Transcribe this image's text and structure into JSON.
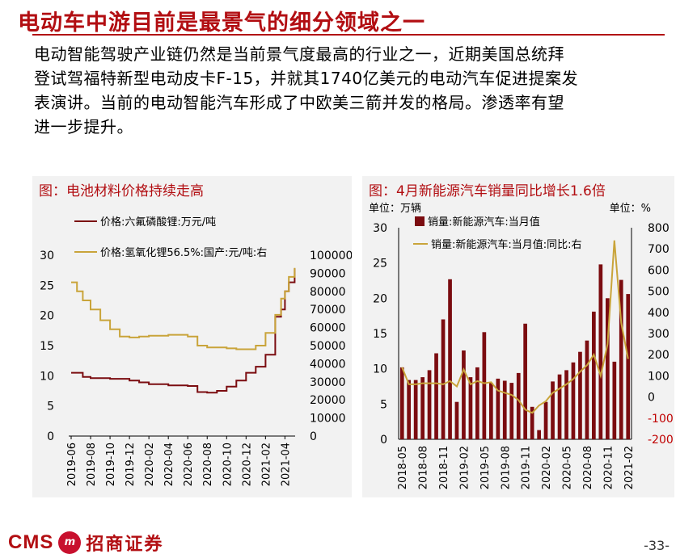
{
  "title": "电动车中游目前是最景气的细分领域之一",
  "body": {
    "line1": "电动智能驾驶产业链仍然是当前景气度最高的行业之一，近期美国总统拜",
    "line2": "登试驾福特新型电动皮卡F-15，并就其1740亿美元的电动汽车促进提案发",
    "line3": "表演讲。当前的电动智能汽车形成了中欧美三箭并发的格局。渗透率有望",
    "line4": "进一步提升。"
  },
  "footer": {
    "cms": "CMS",
    "badge": "m",
    "brand": "招商证券",
    "page": "-33-"
  },
  "colors": {
    "brand": "#b20e12",
    "series_dark": "#7b0c10",
    "series_gold": "#c9a43a",
    "neg": "#c00000"
  },
  "chart_data": [
    {
      "type": "line",
      "title": "图：电池材料价格持续走高",
      "legend": [
        "价格:六氟磷酸锂:万元/吨",
        "价格:氢氧化锂56.5%:国产:元/吨:右"
      ],
      "x_labels": [
        "2019-06",
        "2019-08",
        "2019-10",
        "2019-12",
        "2020-02",
        "2020-04",
        "2020-06",
        "2020-08",
        "2020-10",
        "2020-12",
        "2021-02",
        "2021-04"
      ],
      "y_left": {
        "range": [
          0,
          30
        ],
        "ticks": [
          "0",
          "5",
          "10",
          "15",
          "20",
          "25",
          "30"
        ]
      },
      "y_right": {
        "range": [
          0,
          100000
        ],
        "ticks": [
          "0",
          "10000",
          "20000",
          "30000",
          "40000",
          "50000",
          "60000",
          "70000",
          "80000",
          "90000",
          "100000"
        ]
      },
      "series": [
        {
          "name": "价格:六氟磷酸锂:万元/吨",
          "axis": "left",
          "x": [
            0,
            0.3,
            0.6,
            1,
            2,
            3,
            3.5,
            4,
            5,
            6,
            6.5,
            7,
            7.5,
            8,
            8.5,
            9,
            9.5,
            10,
            10.5,
            10.8,
            11,
            11.2,
            11.5
          ],
          "values": [
            10.5,
            10.5,
            9.8,
            9.6,
            9.5,
            9.2,
            8.9,
            8.6,
            8.4,
            8.3,
            7.3,
            7.2,
            7.5,
            8.2,
            9.2,
            10.5,
            11.5,
            13.5,
            19.8,
            21,
            24,
            25.5,
            27.8
          ]
        },
        {
          "name": "价格:氢氧化锂56.5%:国产:元/吨:右",
          "axis": "right",
          "x": [
            0,
            0.3,
            0.6,
            1,
            1.5,
            2,
            2.5,
            3,
            3.5,
            4,
            5,
            6,
            6.5,
            7,
            7.5,
            8,
            8.5,
            9,
            9.5,
            10,
            10.5,
            10.8,
            11,
            11.2,
            11.5
          ],
          "values": [
            85000,
            80000,
            75000,
            70000,
            64000,
            59000,
            55000,
            54500,
            55000,
            55500,
            56000,
            55000,
            50000,
            49000,
            49000,
            48500,
            48000,
            48000,
            50000,
            57000,
            67000,
            76000,
            80000,
            88000,
            93000
          ]
        }
      ]
    },
    {
      "type": "bar",
      "title": "图：4月新能源汽车销量同比增长1.6倍",
      "left_unit": "单位：万辆",
      "right_unit": "单位：%",
      "legend": [
        "销量:新能源汽车:当月值",
        "销量:新能源汽车:当月值:同比:右"
      ],
      "x_labels": [
        "2018-05",
        "2018-08",
        "2018-11",
        "2019-02",
        "2019-05",
        "2019-08",
        "2019-11",
        "2020-02",
        "2020-05",
        "2020-08",
        "2020-11",
        "2021-02"
      ],
      "y_left": {
        "range": [
          0,
          30
        ],
        "ticks": [
          "0",
          "5",
          "10",
          "15",
          "20",
          "25",
          "30"
        ]
      },
      "y_right": {
        "range": [
          -200,
          800
        ],
        "ticks": [
          "800",
          "700",
          "600",
          "500",
          "400",
          "300",
          "200",
          "100",
          "0",
          "-100",
          "-200"
        ]
      },
      "bar_values": [
        10.2,
        8.4,
        8.4,
        8.8,
        9.8,
        12.2,
        17.0,
        22.7,
        5.3,
        12.6,
        8.8,
        10.2,
        15.2,
        8.0,
        8.6,
        8.3,
        8.0,
        9.4,
        16.4,
        4.6,
        1.3,
        5.3,
        8.2,
        9.2,
        9.8,
        10.9,
        12.4,
        14.0,
        18.1,
        24.8,
        20.0,
        11.0,
        22.6,
        20.6
      ],
      "line_values": [
        140,
        60,
        60,
        65,
        65,
        65,
        60,
        75,
        50,
        130,
        60,
        75,
        65,
        70,
        30,
        20,
        10,
        -15,
        -60,
        -75,
        -40,
        -20,
        20,
        40,
        60,
        85,
        120,
        150,
        200,
        100,
        250,
        740,
        350,
        180
      ]
    }
  ]
}
